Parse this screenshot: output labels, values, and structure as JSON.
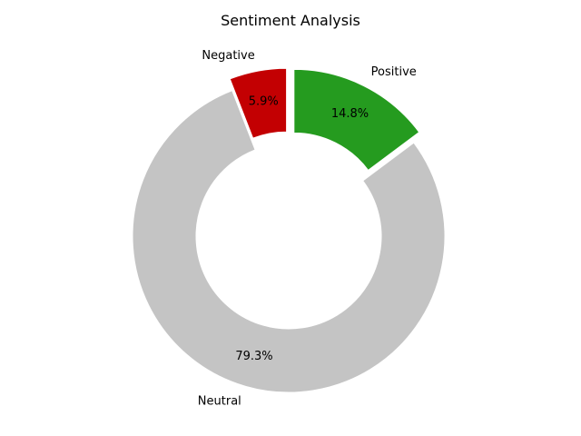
{
  "chart_data": {
    "type": "pie",
    "title": "Sentiment Analysis",
    "donut": true,
    "legend": "none",
    "start_angle_degrees": 90,
    "direction": "clockwise",
    "slices": [
      {
        "label": "Positive",
        "value": 14.8,
        "pct_label": "14.8%",
        "color": "#259b1f",
        "exploded": true
      },
      {
        "label": "Neutral",
        "value": 79.3,
        "pct_label": "79.3%",
        "color": "#c4c4c4",
        "exploded": false
      },
      {
        "label": "Negative",
        "value": 5.9,
        "pct_label": "5.9%",
        "color": "#c30002",
        "exploded": true
      }
    ]
  }
}
